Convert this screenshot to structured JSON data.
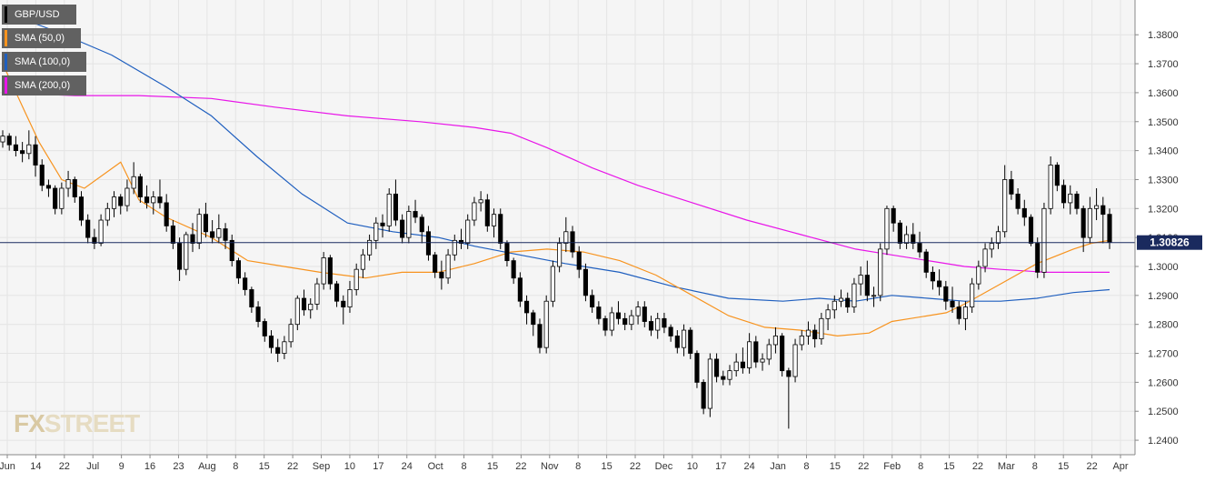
{
  "chart_data": {
    "type": "candlestick",
    "symbol": "GBP/USD",
    "last_price": "1.30826",
    "ylim": [
      1.235,
      1.392
    ],
    "y_ticks": [
      "1.2400",
      "1.2500",
      "1.2600",
      "1.2700",
      "1.2800",
      "1.2900",
      "1.3000",
      "1.3100",
      "1.3200",
      "1.3300",
      "1.3400",
      "1.3500",
      "1.3600",
      "1.3700",
      "1.3800"
    ],
    "x_ticks": [
      "Jun",
      "14",
      "22",
      "Jul",
      "9",
      "16",
      "23",
      "Aug",
      "8",
      "15",
      "22",
      "Sep",
      "10",
      "17",
      "24",
      "Oct",
      "8",
      "15",
      "22",
      "Nov",
      "8",
      "15",
      "22",
      "Dec",
      "10",
      "17",
      "24",
      "Jan",
      "8",
      "15",
      "22",
      "Feb",
      "8",
      "15",
      "22",
      "Mar",
      "8",
      "15",
      "22",
      "Apr"
    ],
    "legend": [
      {
        "name": "GBP/USD",
        "color": "#000000"
      },
      {
        "name": "SMA (50,0)",
        "color": "#f7931e"
      },
      {
        "name": "SMA (100,0)",
        "color": "#1f5fbf"
      },
      {
        "name": "SMA (200,0)",
        "color": "#e815e8"
      }
    ],
    "series_colors": {
      "bull": "#ffffff",
      "bear": "#000000",
      "wick": "#000000",
      "last_line": "#1a2a5e",
      "grid": "#e4e4e4",
      "plot_bg": "#f5f5f5"
    },
    "candles": [
      [
        1.343,
        1.347,
        1.341,
        1.345
      ],
      [
        1.345,
        1.346,
        1.34,
        1.342
      ],
      [
        1.342,
        1.345,
        1.338,
        1.34
      ],
      [
        1.34,
        1.343,
        1.336,
        1.339
      ],
      [
        1.339,
        1.347,
        1.337,
        1.342
      ],
      [
        1.342,
        1.345,
        1.331,
        1.335
      ],
      [
        1.335,
        1.337,
        1.326,
        1.328
      ],
      [
        1.328,
        1.33,
        1.324,
        1.327
      ],
      [
        1.327,
        1.328,
        1.318,
        1.32
      ],
      [
        1.32,
        1.329,
        1.318,
        1.327
      ],
      [
        1.327,
        1.333,
        1.324,
        1.33
      ],
      [
        1.33,
        1.331,
        1.322,
        1.324
      ],
      [
        1.324,
        1.326,
        1.314,
        1.316
      ],
      [
        1.316,
        1.318,
        1.308,
        1.31
      ],
      [
        1.31,
        1.313,
        1.306,
        1.308
      ],
      [
        1.308,
        1.318,
        1.307,
        1.316
      ],
      [
        1.316,
        1.322,
        1.314,
        1.32
      ],
      [
        1.32,
        1.326,
        1.317,
        1.324
      ],
      [
        1.324,
        1.325,
        1.318,
        1.321
      ],
      [
        1.321,
        1.33,
        1.319,
        1.327
      ],
      [
        1.327,
        1.336,
        1.325,
        1.331
      ],
      [
        1.331,
        1.332,
        1.322,
        1.324
      ],
      [
        1.324,
        1.328,
        1.32,
        1.322
      ],
      [
        1.322,
        1.326,
        1.318,
        1.324
      ],
      [
        1.324,
        1.33,
        1.32,
        1.322
      ],
      [
        1.322,
        1.325,
        1.312,
        1.314
      ],
      [
        1.314,
        1.316,
        1.306,
        1.308
      ],
      [
        1.308,
        1.31,
        1.295,
        1.299
      ],
      [
        1.299,
        1.312,
        1.297,
        1.311
      ],
      [
        1.311,
        1.315,
        1.305,
        1.308
      ],
      [
        1.308,
        1.32,
        1.306,
        1.318
      ],
      [
        1.318,
        1.322,
        1.31,
        1.312
      ],
      [
        1.312,
        1.316,
        1.308,
        1.31
      ],
      [
        1.31,
        1.318,
        1.308,
        1.313
      ],
      [
        1.313,
        1.315,
        1.306,
        1.309
      ],
      [
        1.309,
        1.311,
        1.3,
        1.302
      ],
      [
        1.302,
        1.303,
        1.294,
        1.296
      ],
      [
        1.296,
        1.298,
        1.29,
        1.292
      ],
      [
        1.292,
        1.293,
        1.284,
        1.286
      ],
      [
        1.286,
        1.288,
        1.279,
        1.281
      ],
      [
        1.281,
        1.282,
        1.274,
        1.276
      ],
      [
        1.276,
        1.278,
        1.27,
        1.272
      ],
      [
        1.272,
        1.275,
        1.267,
        1.27
      ],
      [
        1.27,
        1.276,
        1.268,
        1.274
      ],
      [
        1.274,
        1.282,
        1.272,
        1.28
      ],
      [
        1.28,
        1.29,
        1.278,
        1.289
      ],
      [
        1.289,
        1.292,
        1.283,
        1.285
      ],
      [
        1.285,
        1.289,
        1.282,
        1.287
      ],
      [
        1.287,
        1.296,
        1.285,
        1.294
      ],
      [
        1.294,
        1.305,
        1.292,
        1.303
      ],
      [
        1.303,
        1.304,
        1.292,
        1.294
      ],
      [
        1.294,
        1.295,
        1.286,
        1.288
      ],
      [
        1.288,
        1.29,
        1.28,
        1.286
      ],
      [
        1.286,
        1.295,
        1.284,
        1.292
      ],
      [
        1.292,
        1.301,
        1.29,
        1.299
      ],
      [
        1.299,
        1.306,
        1.296,
        1.304
      ],
      [
        1.304,
        1.311,
        1.302,
        1.309
      ],
      [
        1.309,
        1.317,
        1.306,
        1.315
      ],
      [
        1.315,
        1.318,
        1.31,
        1.314
      ],
      [
        1.314,
        1.327,
        1.312,
        1.325
      ],
      [
        1.325,
        1.33,
        1.314,
        1.316
      ],
      [
        1.316,
        1.318,
        1.308,
        1.31
      ],
      [
        1.31,
        1.321,
        1.308,
        1.319
      ],
      [
        1.319,
        1.323,
        1.315,
        1.317
      ],
      [
        1.317,
        1.318,
        1.308,
        1.312
      ],
      [
        1.312,
        1.314,
        1.302,
        1.304
      ],
      [
        1.304,
        1.305,
        1.296,
        1.298
      ],
      [
        1.298,
        1.302,
        1.292,
        1.296
      ],
      [
        1.296,
        1.306,
        1.294,
        1.304
      ],
      [
        1.304,
        1.311,
        1.302,
        1.309
      ],
      [
        1.309,
        1.313,
        1.306,
        1.308
      ],
      [
        1.308,
        1.318,
        1.306,
        1.316
      ],
      [
        1.316,
        1.324,
        1.314,
        1.322
      ],
      [
        1.322,
        1.326,
        1.319,
        1.323
      ],
      [
        1.323,
        1.325,
        1.312,
        1.314
      ],
      [
        1.314,
        1.32,
        1.31,
        1.318
      ],
      [
        1.318,
        1.32,
        1.306,
        1.308
      ],
      [
        1.308,
        1.309,
        1.3,
        1.302
      ],
      [
        1.302,
        1.303,
        1.294,
        1.296
      ],
      [
        1.296,
        1.298,
        1.286,
        1.288
      ],
      [
        1.288,
        1.29,
        1.28,
        1.284
      ],
      [
        1.284,
        1.285,
        1.276,
        1.28
      ],
      [
        1.28,
        1.282,
        1.27,
        1.272
      ],
      [
        1.272,
        1.29,
        1.27,
        1.288
      ],
      [
        1.288,
        1.302,
        1.286,
        1.3
      ],
      [
        1.3,
        1.31,
        1.298,
        1.308
      ],
      [
        1.308,
        1.317,
        1.305,
        1.312
      ],
      [
        1.312,
        1.314,
        1.303,
        1.305
      ],
      [
        1.305,
        1.307,
        1.296,
        1.299
      ],
      [
        1.299,
        1.301,
        1.288,
        1.29
      ],
      [
        1.29,
        1.292,
        1.284,
        1.286
      ],
      [
        1.286,
        1.288,
        1.28,
        1.282
      ],
      [
        1.282,
        1.283,
        1.276,
        1.278
      ],
      [
        1.278,
        1.286,
        1.276,
        1.284
      ],
      [
        1.284,
        1.288,
        1.28,
        1.282
      ],
      [
        1.282,
        1.284,
        1.278,
        1.28
      ],
      [
        1.28,
        1.285,
        1.278,
        1.283
      ],
      [
        1.283,
        1.288,
        1.28,
        1.286
      ],
      [
        1.286,
        1.288,
        1.279,
        1.281
      ],
      [
        1.281,
        1.283,
        1.276,
        1.278
      ],
      [
        1.278,
        1.284,
        1.275,
        1.282
      ],
      [
        1.282,
        1.284,
        1.277,
        1.279
      ],
      [
        1.279,
        1.28,
        1.274,
        1.276
      ],
      [
        1.276,
        1.278,
        1.27,
        1.272
      ],
      [
        1.272,
        1.28,
        1.269,
        1.278
      ],
      [
        1.278,
        1.279,
        1.268,
        1.27
      ],
      [
        1.27,
        1.271,
        1.258,
        1.26
      ],
      [
        1.26,
        1.261,
        1.249,
        1.251
      ],
      [
        1.251,
        1.27,
        1.248,
        1.268
      ],
      [
        1.268,
        1.27,
        1.26,
        1.262
      ],
      [
        1.262,
        1.264,
        1.259,
        1.261
      ],
      [
        1.261,
        1.266,
        1.259,
        1.264
      ],
      [
        1.264,
        1.27,
        1.262,
        1.267
      ],
      [
        1.267,
        1.272,
        1.263,
        1.265
      ],
      [
        1.265,
        1.277,
        1.263,
        1.274
      ],
      [
        1.274,
        1.276,
        1.265,
        1.267
      ],
      [
        1.267,
        1.27,
        1.264,
        1.268
      ],
      [
        1.268,
        1.275,
        1.266,
        1.273
      ],
      [
        1.273,
        1.279,
        1.27,
        1.276
      ],
      [
        1.276,
        1.277,
        1.262,
        1.264
      ],
      [
        1.264,
        1.265,
        1.244,
        1.262
      ],
      [
        1.262,
        1.275,
        1.26,
        1.273
      ],
      [
        1.273,
        1.278,
        1.271,
        1.276
      ],
      [
        1.276,
        1.281,
        1.273,
        1.278
      ],
      [
        1.278,
        1.28,
        1.272,
        1.275
      ],
      [
        1.275,
        1.284,
        1.273,
        1.282
      ],
      [
        1.282,
        1.287,
        1.278,
        1.285
      ],
      [
        1.285,
        1.29,
        1.282,
        1.288
      ],
      [
        1.288,
        1.292,
        1.286,
        1.289
      ],
      [
        1.289,
        1.291,
        1.284,
        1.286
      ],
      [
        1.286,
        1.296,
        1.284,
        1.294
      ],
      [
        1.294,
        1.3,
        1.29,
        1.297
      ],
      [
        1.297,
        1.302,
        1.288,
        1.29
      ],
      [
        1.29,
        1.293,
        1.286,
        1.29
      ],
      [
        1.29,
        1.308,
        1.288,
        1.306
      ],
      [
        1.306,
        1.321,
        1.304,
        1.32
      ],
      [
        1.32,
        1.321,
        1.312,
        1.315
      ],
      [
        1.315,
        1.316,
        1.306,
        1.308
      ],
      [
        1.308,
        1.314,
        1.306,
        1.311
      ],
      [
        1.311,
        1.315,
        1.306,
        1.308
      ],
      [
        1.308,
        1.312,
        1.303,
        1.305
      ],
      [
        1.305,
        1.306,
        1.296,
        1.298
      ],
      [
        1.298,
        1.3,
        1.292,
        1.295
      ],
      [
        1.295,
        1.299,
        1.29,
        1.293
      ],
      [
        1.293,
        1.295,
        1.285,
        1.288
      ],
      [
        1.288,
        1.293,
        1.284,
        1.286
      ],
      [
        1.286,
        1.288,
        1.28,
        1.282
      ],
      [
        1.282,
        1.288,
        1.278,
        1.286
      ],
      [
        1.286,
        1.296,
        1.284,
        1.294
      ],
      [
        1.294,
        1.302,
        1.292,
        1.3
      ],
      [
        1.3,
        1.308,
        1.298,
        1.306
      ],
      [
        1.306,
        1.31,
        1.303,
        1.308
      ],
      [
        1.308,
        1.314,
        1.306,
        1.312
      ],
      [
        1.312,
        1.335,
        1.31,
        1.33
      ],
      [
        1.33,
        1.333,
        1.323,
        1.325
      ],
      [
        1.325,
        1.327,
        1.318,
        1.32
      ],
      [
        1.32,
        1.323,
        1.314,
        1.317
      ],
      [
        1.317,
        1.318,
        1.307,
        1.308
      ],
      [
        1.308,
        1.31,
        1.296,
        1.298
      ],
      [
        1.298,
        1.322,
        1.296,
        1.32
      ],
      [
        1.32,
        1.338,
        1.318,
        1.335
      ],
      [
        1.335,
        1.336,
        1.326,
        1.328
      ],
      [
        1.328,
        1.33,
        1.32,
        1.322
      ],
      [
        1.322,
        1.328,
        1.318,
        1.325
      ],
      [
        1.325,
        1.326,
        1.318,
        1.32
      ],
      [
        1.32,
        1.321,
        1.305,
        1.31
      ],
      [
        1.31,
        1.324,
        1.308,
        1.32
      ],
      [
        1.32,
        1.327,
        1.316,
        1.321
      ],
      [
        1.321,
        1.324,
        1.308,
        1.318
      ],
      [
        1.318,
        1.32,
        1.306,
        1.3083
      ]
    ],
    "sma50": [
      [
        0,
        1.37
      ],
      [
        25,
        1.353
      ],
      [
        40,
        1.343
      ],
      [
        65,
        1.33
      ],
      [
        90,
        1.327
      ],
      [
        130,
        1.336
      ],
      [
        150,
        1.323
      ],
      [
        180,
        1.317
      ],
      [
        230,
        1.31
      ],
      [
        270,
        1.302
      ],
      [
        310,
        1.3
      ],
      [
        350,
        1.298
      ],
      [
        400,
        1.296
      ],
      [
        440,
        1.298
      ],
      [
        480,
        1.298
      ],
      [
        520,
        1.301
      ],
      [
        560,
        1.305
      ],
      [
        600,
        1.306
      ],
      [
        640,
        1.305
      ],
      [
        680,
        1.302
      ],
      [
        720,
        1.297
      ],
      [
        760,
        1.29
      ],
      [
        800,
        1.283
      ],
      [
        840,
        1.279
      ],
      [
        880,
        1.278
      ],
      [
        920,
        1.276
      ],
      [
        955,
        1.277
      ],
      [
        980,
        1.281
      ],
      [
        1000,
        1.282
      ],
      [
        1040,
        1.284
      ],
      [
        1060,
        1.287
      ],
      [
        1100,
        1.294
      ],
      [
        1140,
        1.301
      ],
      [
        1180,
        1.306
      ],
      [
        1200,
        1.308
      ],
      [
        1220,
        1.309
      ]
    ],
    "sma100": [
      [
        0,
        1.388
      ],
      [
        60,
        1.381
      ],
      [
        120,
        1.373
      ],
      [
        180,
        1.362
      ],
      [
        230,
        1.352
      ],
      [
        280,
        1.338
      ],
      [
        330,
        1.325
      ],
      [
        380,
        1.315
      ],
      [
        430,
        1.312
      ],
      [
        480,
        1.31
      ],
      [
        520,
        1.307
      ],
      [
        570,
        1.304
      ],
      [
        620,
        1.301
      ],
      [
        680,
        1.298
      ],
      [
        740,
        1.293
      ],
      [
        800,
        1.289
      ],
      [
        860,
        1.288
      ],
      [
        900,
        1.289
      ],
      [
        940,
        1.288
      ],
      [
        980,
        1.29
      ],
      [
        1020,
        1.289
      ],
      [
        1060,
        1.288
      ],
      [
        1100,
        1.288
      ],
      [
        1140,
        1.289
      ],
      [
        1180,
        1.291
      ],
      [
        1220,
        1.292
      ]
    ],
    "sma200": [
      [
        0,
        1.36
      ],
      [
        80,
        1.359
      ],
      [
        150,
        1.359
      ],
      [
        230,
        1.358
      ],
      [
        300,
        1.355
      ],
      [
        380,
        1.352
      ],
      [
        460,
        1.35
      ],
      [
        520,
        1.348
      ],
      [
        560,
        1.346
      ],
      [
        600,
        1.341
      ],
      [
        650,
        1.334
      ],
      [
        700,
        1.328
      ],
      [
        760,
        1.322
      ],
      [
        820,
        1.316
      ],
      [
        880,
        1.311
      ],
      [
        940,
        1.306
      ],
      [
        980,
        1.304
      ],
      [
        1020,
        1.302
      ],
      [
        1060,
        1.3
      ],
      [
        1100,
        1.299
      ],
      [
        1150,
        1.298
      ],
      [
        1220,
        1.298
      ]
    ]
  },
  "branding": {
    "logo_fx": "FX",
    "logo_street": "STREET"
  }
}
